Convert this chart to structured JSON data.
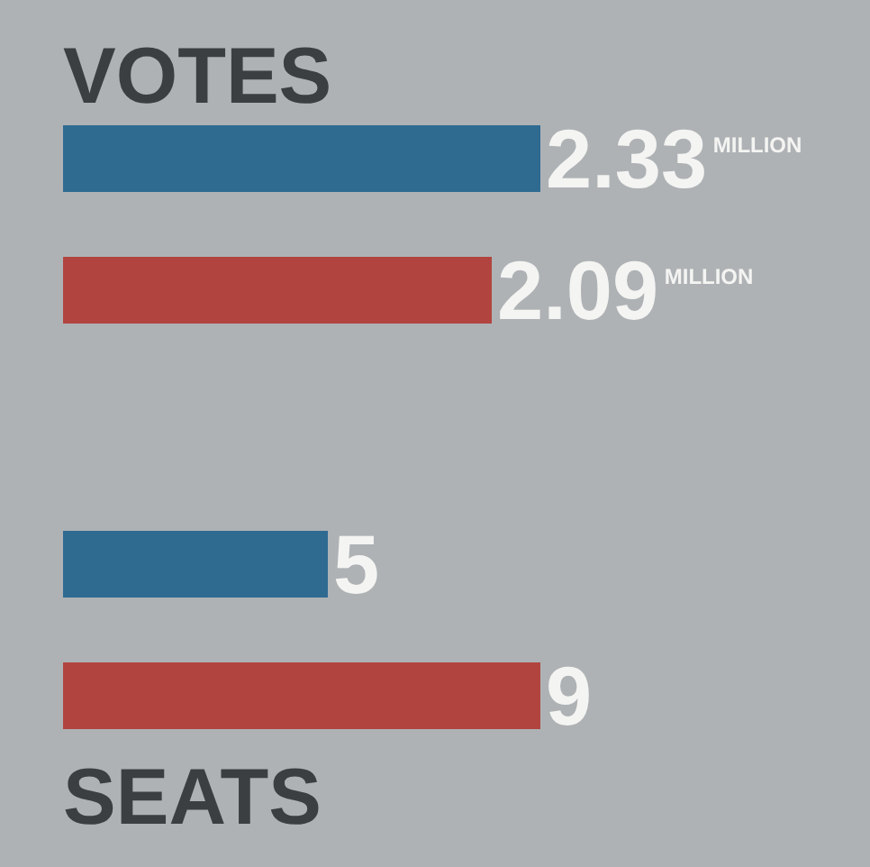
{
  "chart_data": [
    {
      "type": "bar",
      "orientation": "horizontal",
      "title": "VOTES",
      "categories": [
        null,
        null
      ],
      "values": [
        2.33,
        2.09
      ],
      "colors": [
        "#2f6a91",
        "#b1443f"
      ],
      "value_labels": [
        "2.33$^{MILLION}$",
        "2.09$^{MILLION}$"
      ]
    },
    {
      "type": "bar",
      "orientation": "horizontal",
      "title": "SEATS",
      "categories": [
        null,
        null
      ],
      "values": [
        5,
        9
      ],
      "colors": [
        "#2f6a91",
        "#b1443f"
      ],
      "data_labels": true
    }
  ]
}
